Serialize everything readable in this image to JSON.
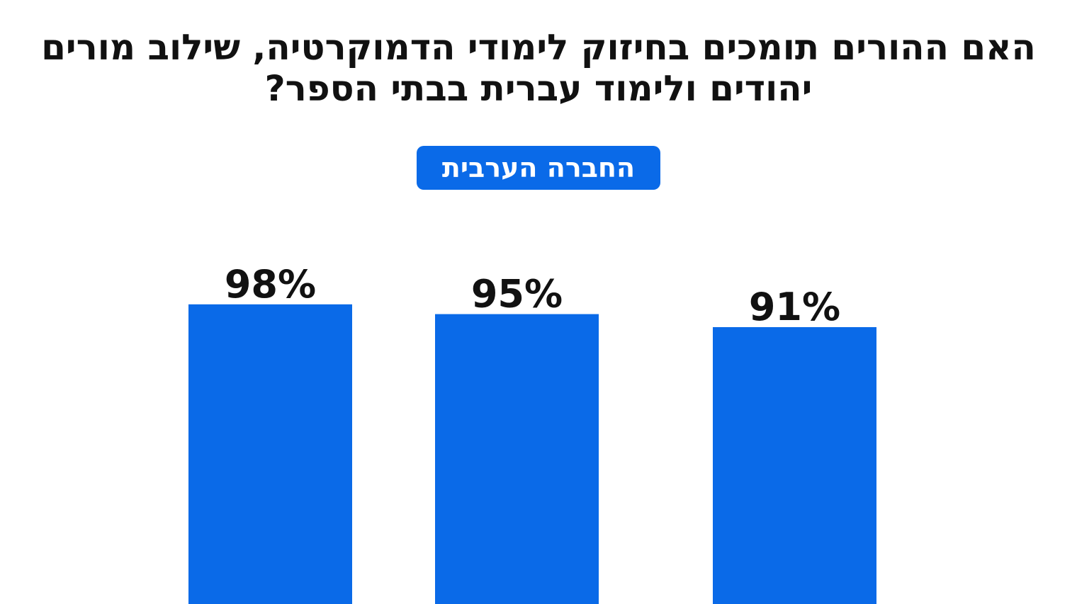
{
  "title": "האם ההורים תומכים בחיזוק לימודי הדמוקרטיה, שילוב מורים יהודים ולימוד עברית בבתי הספר?",
  "badge": {
    "label": "החברה הערבית",
    "color": "#0a6ae8"
  },
  "chart_data": {
    "type": "bar",
    "categories": [
      "",
      "",
      ""
    ],
    "values": [
      98,
      95,
      91
    ],
    "value_labels": [
      "98%",
      "95%",
      "91%"
    ],
    "bar_color": "#0a6ae8",
    "title": "האם ההורים תומכים בחיזוק לימודי הדמוקרטיה, שילוב מורים יהודים ולימוד עברית בבתי הספר?",
    "xlabel": "",
    "ylabel": "",
    "ylim": [
      0,
      100
    ],
    "grid": false
  }
}
